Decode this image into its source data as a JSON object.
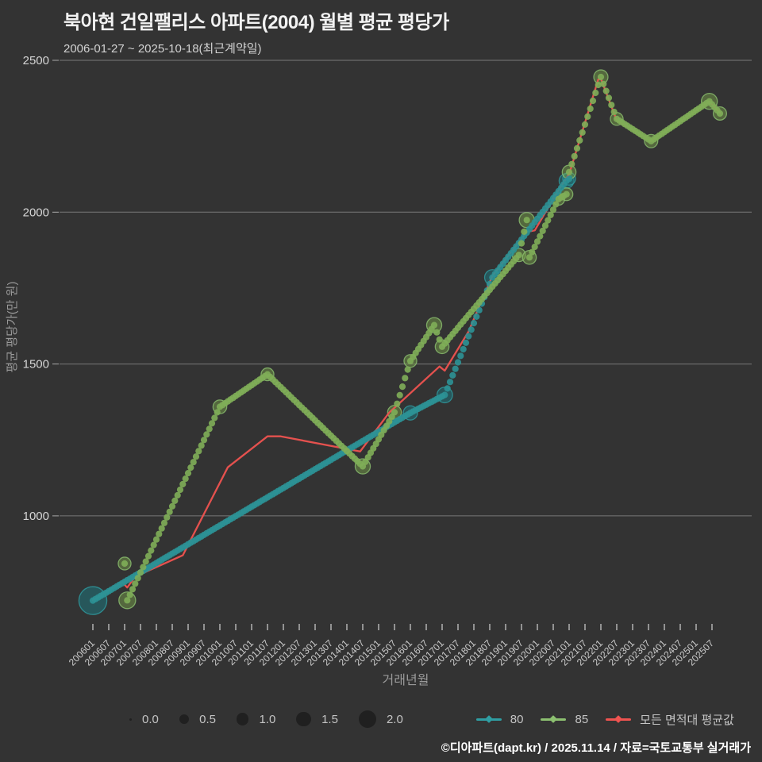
{
  "header": {
    "title": "북아현 건일팰리스 아파트(2004) 월별 평균 평당가",
    "subtitle": "2006-01-27 ~ 2025-10-18(최근계약일)"
  },
  "footer": {
    "text": "©디아파트(dapt.kr) / 2025.11.14 / 자료=국토교통부 실거래가"
  },
  "chart_data": {
    "type": "scatter",
    "title": "북아현 건일팰리스 아파트(2004) 월별 평균 평당가",
    "xlabel": "거래년월",
    "ylabel": "평균 평당가(만 원)",
    "grid": "horizontal",
    "legend_position": "bottom",
    "ylim": [
      600,
      2500
    ],
    "y_ticks": [
      2500,
      2000,
      1500,
      1000
    ],
    "x_tick_labels": [
      "200601",
      "200607",
      "200701",
      "200707",
      "200801",
      "200807",
      "200901",
      "200907",
      "201001",
      "201007",
      "201101",
      "201107",
      "201201",
      "201207",
      "201301",
      "201307",
      "201401",
      "201407",
      "201501",
      "201507",
      "201601",
      "201607",
      "201701",
      "201707",
      "201801",
      "201807",
      "201901",
      "201907",
      "202001",
      "202007",
      "202101",
      "202107",
      "202201",
      "202207",
      "202301",
      "202307",
      "202401",
      "202407",
      "202501",
      "202507"
    ],
    "size_legend": [
      "0.0",
      "0.5",
      "1.0",
      "1.5",
      "2.0"
    ],
    "series": [
      {
        "name": "80",
        "color": "#2f9ea3",
        "dot_color": "#2c9296",
        "fill": "rgba(31,112,118,0.60)",
        "points": [
          [
            "200601",
            721,
            6.0
          ],
          [
            "201601",
            1339,
            1.2
          ],
          [
            "201702",
            1398,
            1.5
          ],
          [
            "201808",
            1785,
            1.5
          ],
          [
            "202012",
            2103,
            1.3
          ],
          [
            "202101",
            2110,
            0.9
          ]
        ]
      },
      {
        "name": "85",
        "color": "#8cc070",
        "dot_color": "#7fae58",
        "fill": "rgba(118,158,74,0.50)",
        "points": [
          [
            "200701",
            843,
            0.9
          ],
          [
            "200702",
            722,
            1.8
          ],
          [
            "201001",
            1359,
            1.1
          ],
          [
            "201107",
            1466,
            0.9
          ],
          [
            "201407",
            1163,
            1.4
          ],
          [
            "201507",
            1341,
            1.1
          ],
          [
            "201601",
            1510,
            0.9
          ],
          [
            "201610",
            1628,
            1.4
          ],
          [
            "201701",
            1557,
            1.1
          ],
          [
            "201906",
            1859,
            1.0
          ],
          [
            "201909",
            1974,
            1.4
          ],
          [
            "201910",
            1851,
            1.1
          ],
          [
            "202009",
            2043,
            0.8
          ],
          [
            "202012",
            2059,
            0.9
          ],
          [
            "202101",
            2132,
            1.1
          ],
          [
            "202201",
            2445,
            1.2
          ],
          [
            "202207",
            2307,
            0.9
          ],
          [
            "202308",
            2234,
            1.0
          ],
          [
            "202506",
            2365,
            1.6
          ],
          [
            "202510",
            2325,
            1.0
          ]
        ]
      }
    ],
    "avg_series": {
      "name": "모든 면적대 평균값",
      "color": "#ef5350",
      "points": [
        [
          "200601",
          722
        ],
        [
          "200612",
          782
        ],
        [
          "200702",
          764
        ],
        [
          "200705",
          800
        ],
        [
          "200811",
          870
        ],
        [
          "201004",
          1160
        ],
        [
          "201107",
          1262
        ],
        [
          "201112",
          1262
        ],
        [
          "201406",
          1212
        ],
        [
          "201505",
          1340
        ],
        [
          "201612",
          1492
        ],
        [
          "201702",
          1478
        ],
        [
          "201711",
          1607
        ],
        [
          "201808",
          1790
        ],
        [
          "201909",
          1935
        ],
        [
          "201912",
          1940
        ],
        [
          "202009",
          2073
        ],
        [
          "202101",
          2125
        ],
        [
          "202112",
          2437
        ],
        [
          "202201",
          2440
        ],
        [
          "202207",
          2302
        ],
        [
          "202308",
          2234
        ],
        [
          "202506",
          2364
        ],
        [
          "202510",
          2327
        ]
      ]
    }
  }
}
